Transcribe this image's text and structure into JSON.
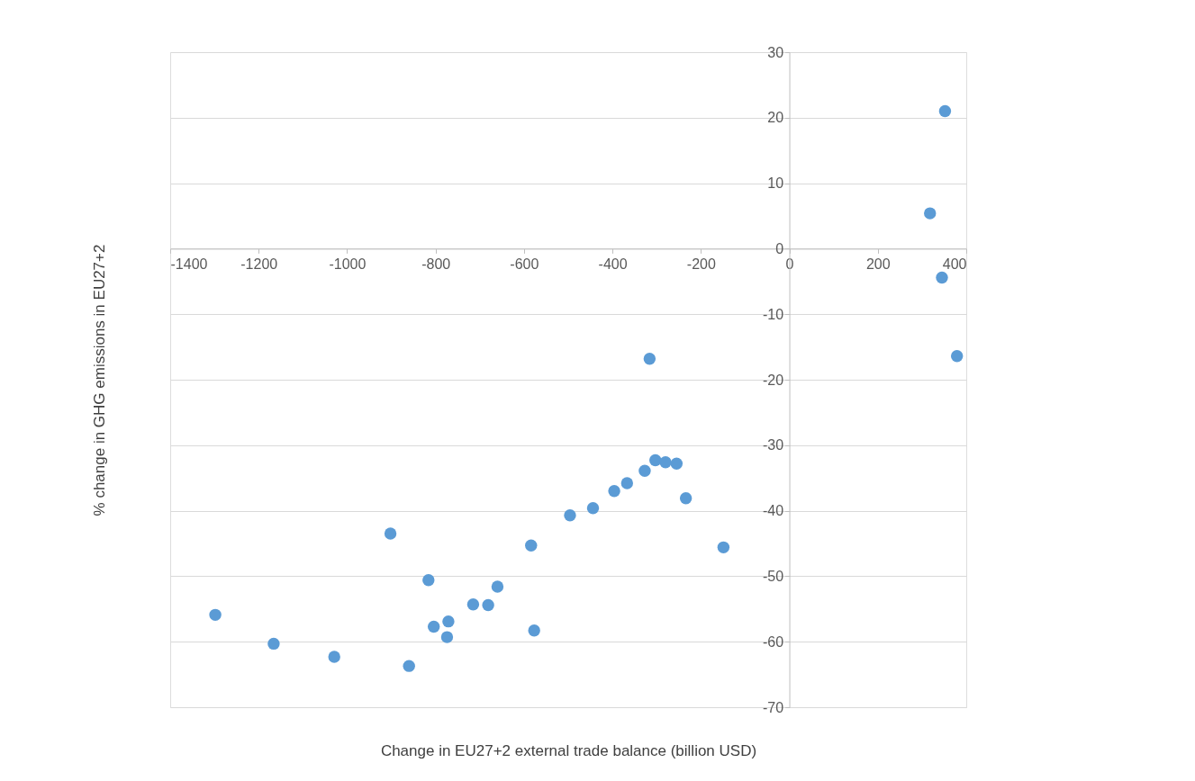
{
  "chart_data": {
    "type": "scatter",
    "xlabel": "Change in EU27+2 external trade balance (billion USD)",
    "ylabel": "% change in GHG emissions in EU27+2",
    "x": [
      352,
      318,
      345,
      379,
      -316,
      -303,
      -280,
      -255,
      -327,
      -367,
      -396,
      -234,
      -444,
      -496,
      -149,
      -584,
      -902,
      -816,
      -660,
      -715,
      -681,
      -1298,
      -771,
      -804,
      -577,
      -774,
      -1166,
      -1029,
      -860
    ],
    "series": [
      {
        "color": "#5b9bd5",
        "values": [
          21.0,
          5.4,
          -4.4,
          -16.4,
          -16.8,
          -32.3,
          -32.6,
          -32.8,
          -33.9,
          -35.8,
          -37.0,
          -38.1,
          -39.6,
          -40.7,
          -45.6,
          -45.3,
          -43.5,
          -50.6,
          -51.6,
          -54.3,
          -54.4,
          -55.9,
          -56.9,
          -57.7,
          -58.3,
          -59.3,
          -60.3,
          -62.3,
          -63.7
        ]
      }
    ],
    "xlim": [
      -1400,
      400
    ],
    "xticks": [
      -1400,
      -1200,
      -1000,
      -800,
      -600,
      -400,
      -200,
      0,
      200,
      400
    ],
    "ylim": [
      -70,
      30
    ],
    "yticks": [
      -70,
      -60,
      -50,
      -40,
      -30,
      -20,
      -10,
      0,
      10,
      20,
      30
    ],
    "grid": "y",
    "marker": "circle",
    "legend": false
  }
}
